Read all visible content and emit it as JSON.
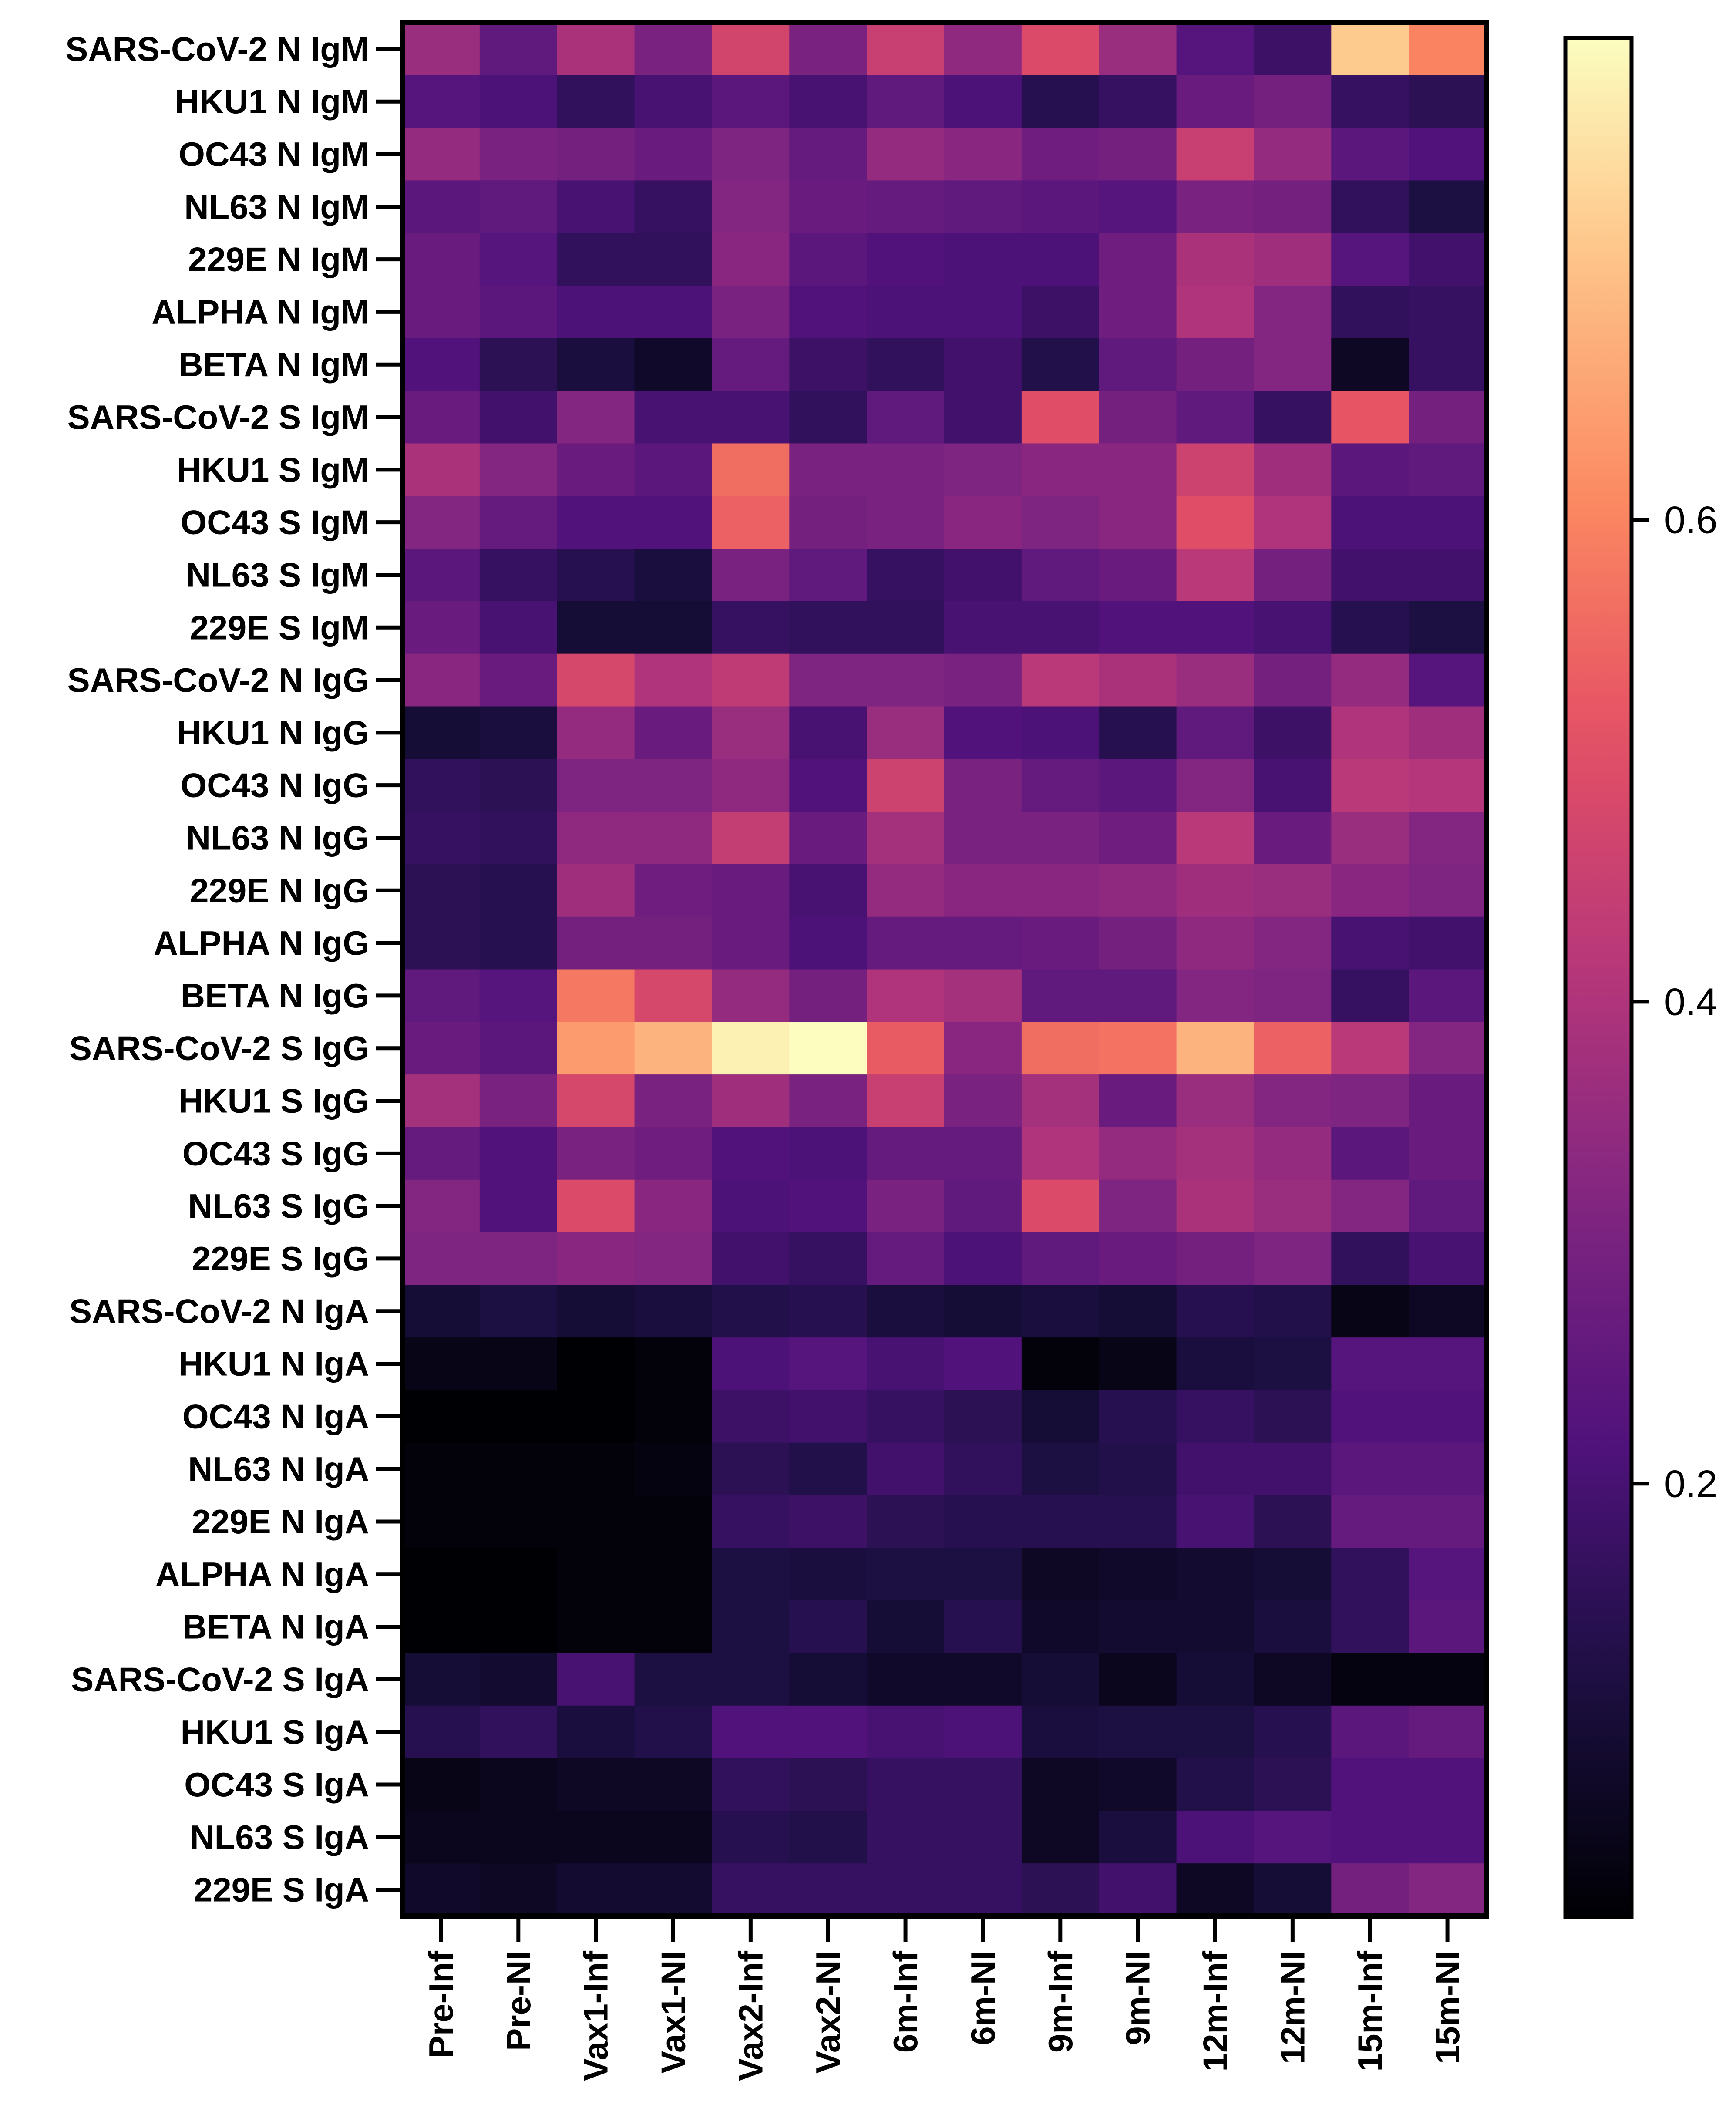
{
  "chart_data": {
    "type": "heatmap",
    "title": "",
    "colormap": "magma",
    "rows": [
      "SARS-CoV-2 N IgM",
      "HKU1 N IgM",
      "OC43 N IgM",
      "NL63 N IgM",
      "229E N IgM",
      "ALPHA N IgM",
      "BETA N IgM",
      "SARS-CoV-2 S IgM",
      "HKU1 S IgM",
      "OC43 S IgM",
      "NL63 S IgM",
      "229E S IgM",
      "SARS-CoV-2 N IgG",
      "HKU1 N IgG",
      "OC43 N IgG",
      "NL63 N IgG",
      "229E N IgG",
      "ALPHA N IgG",
      "BETA N IgG",
      "SARS-CoV-2 S IgG",
      "HKU1 S IgG",
      "OC43 S IgG",
      "NL63 S IgG",
      "229E S IgG",
      "SARS-CoV-2 N IgA",
      "HKU1 N IgA",
      "OC43 N IgA",
      "NL63 N IgA",
      "229E N IgA",
      "ALPHA N IgA",
      "BETA N IgA",
      "SARS-CoV-2 S IgA",
      "HKU1 S IgA",
      "OC43 S IgA",
      "NL63 S IgA",
      "229E S IgA"
    ],
    "columns": [
      "Pre-Inf",
      "Pre-NI",
      "Vax1-Inf",
      "Vax1-NI",
      "Vax2-Inf",
      "Vax2-NI",
      "6m-Inf",
      "6m-NI",
      "9m-Inf",
      "9m-NI",
      "12m-Inf",
      "12m-NI",
      "15m-Inf",
      "15m-NI"
    ],
    "values": [
      [
        0.36,
        0.25,
        0.39,
        0.3,
        0.47,
        0.3,
        0.45,
        0.34,
        0.49,
        0.36,
        0.23,
        0.18,
        0.72,
        0.6
      ],
      [
        0.23,
        0.21,
        0.16,
        0.2,
        0.24,
        0.2,
        0.25,
        0.21,
        0.14,
        0.17,
        0.27,
        0.29,
        0.17,
        0.15
      ],
      [
        0.35,
        0.3,
        0.29,
        0.27,
        0.31,
        0.26,
        0.35,
        0.33,
        0.28,
        0.29,
        0.45,
        0.35,
        0.24,
        0.22
      ],
      [
        0.24,
        0.25,
        0.2,
        0.17,
        0.32,
        0.27,
        0.26,
        0.25,
        0.24,
        0.23,
        0.3,
        0.29,
        0.16,
        0.12
      ],
      [
        0.27,
        0.23,
        0.16,
        0.16,
        0.33,
        0.24,
        0.22,
        0.21,
        0.21,
        0.28,
        0.39,
        0.37,
        0.23,
        0.19
      ],
      [
        0.27,
        0.24,
        0.21,
        0.21,
        0.3,
        0.22,
        0.21,
        0.21,
        0.18,
        0.28,
        0.4,
        0.32,
        0.16,
        0.17
      ],
      [
        0.22,
        0.15,
        0.11,
        0.08,
        0.26,
        0.18,
        0.16,
        0.19,
        0.13,
        0.25,
        0.29,
        0.32,
        0.07,
        0.17
      ],
      [
        0.27,
        0.19,
        0.32,
        0.2,
        0.2,
        0.16,
        0.25,
        0.19,
        0.5,
        0.29,
        0.25,
        0.17,
        0.52,
        0.29
      ],
      [
        0.39,
        0.32,
        0.27,
        0.24,
        0.56,
        0.3,
        0.3,
        0.31,
        0.33,
        0.33,
        0.46,
        0.37,
        0.24,
        0.25
      ],
      [
        0.32,
        0.26,
        0.22,
        0.22,
        0.54,
        0.29,
        0.3,
        0.33,
        0.31,
        0.33,
        0.5,
        0.4,
        0.21,
        0.21
      ],
      [
        0.24,
        0.17,
        0.14,
        0.11,
        0.3,
        0.25,
        0.17,
        0.19,
        0.25,
        0.27,
        0.42,
        0.29,
        0.19,
        0.19
      ],
      [
        0.27,
        0.2,
        0.1,
        0.1,
        0.17,
        0.16,
        0.16,
        0.2,
        0.2,
        0.22,
        0.22,
        0.2,
        0.14,
        0.12
      ],
      [
        0.33,
        0.27,
        0.48,
        0.4,
        0.43,
        0.31,
        0.31,
        0.3,
        0.42,
        0.39,
        0.36,
        0.29,
        0.35,
        0.23
      ],
      [
        0.1,
        0.11,
        0.35,
        0.27,
        0.36,
        0.2,
        0.36,
        0.22,
        0.21,
        0.14,
        0.25,
        0.18,
        0.4,
        0.37
      ],
      [
        0.16,
        0.15,
        0.31,
        0.31,
        0.34,
        0.22,
        0.46,
        0.3,
        0.26,
        0.24,
        0.32,
        0.2,
        0.42,
        0.41
      ],
      [
        0.17,
        0.16,
        0.34,
        0.34,
        0.44,
        0.27,
        0.38,
        0.3,
        0.3,
        0.28,
        0.42,
        0.27,
        0.36,
        0.32
      ],
      [
        0.15,
        0.14,
        0.37,
        0.28,
        0.27,
        0.2,
        0.35,
        0.33,
        0.33,
        0.34,
        0.37,
        0.36,
        0.33,
        0.31
      ],
      [
        0.15,
        0.14,
        0.29,
        0.29,
        0.27,
        0.21,
        0.26,
        0.26,
        0.27,
        0.29,
        0.34,
        0.32,
        0.2,
        0.19
      ],
      [
        0.25,
        0.23,
        0.58,
        0.48,
        0.35,
        0.29,
        0.4,
        0.38,
        0.25,
        0.25,
        0.32,
        0.31,
        0.17,
        0.24
      ],
      [
        0.27,
        0.24,
        0.64,
        0.68,
        0.78,
        0.8,
        0.53,
        0.33,
        0.56,
        0.57,
        0.68,
        0.54,
        0.42,
        0.32
      ],
      [
        0.38,
        0.3,
        0.48,
        0.3,
        0.37,
        0.3,
        0.45,
        0.3,
        0.38,
        0.27,
        0.36,
        0.32,
        0.31,
        0.27
      ],
      [
        0.26,
        0.22,
        0.3,
        0.28,
        0.22,
        0.21,
        0.26,
        0.26,
        0.4,
        0.35,
        0.38,
        0.35,
        0.24,
        0.27
      ],
      [
        0.32,
        0.22,
        0.49,
        0.33,
        0.21,
        0.22,
        0.3,
        0.25,
        0.49,
        0.31,
        0.39,
        0.36,
        0.32,
        0.25
      ],
      [
        0.31,
        0.31,
        0.33,
        0.32,
        0.19,
        0.17,
        0.26,
        0.21,
        0.25,
        0.27,
        0.29,
        0.31,
        0.16,
        0.2
      ],
      [
        0.1,
        0.12,
        0.1,
        0.11,
        0.13,
        0.14,
        0.11,
        0.1,
        0.11,
        0.1,
        0.14,
        0.13,
        0.05,
        0.07
      ],
      [
        0.05,
        0.05,
        0.02,
        0.03,
        0.21,
        0.23,
        0.2,
        0.22,
        0.03,
        0.05,
        0.11,
        0.12,
        0.23,
        0.23
      ],
      [
        0.02,
        0.02,
        0.02,
        0.03,
        0.18,
        0.19,
        0.17,
        0.15,
        0.1,
        0.14,
        0.17,
        0.15,
        0.22,
        0.22
      ],
      [
        0.03,
        0.03,
        0.03,
        0.04,
        0.15,
        0.13,
        0.19,
        0.16,
        0.12,
        0.13,
        0.19,
        0.19,
        0.24,
        0.24
      ],
      [
        0.03,
        0.03,
        0.03,
        0.03,
        0.17,
        0.18,
        0.15,
        0.14,
        0.14,
        0.14,
        0.2,
        0.15,
        0.26,
        0.26
      ],
      [
        0.02,
        0.02,
        0.03,
        0.03,
        0.12,
        0.11,
        0.12,
        0.12,
        0.07,
        0.08,
        0.09,
        0.1,
        0.16,
        0.23
      ],
      [
        0.02,
        0.02,
        0.03,
        0.03,
        0.12,
        0.14,
        0.1,
        0.14,
        0.08,
        0.09,
        0.09,
        0.11,
        0.16,
        0.24
      ],
      [
        0.1,
        0.09,
        0.2,
        0.12,
        0.12,
        0.1,
        0.08,
        0.08,
        0.1,
        0.06,
        0.1,
        0.07,
        0.04,
        0.04
      ],
      [
        0.14,
        0.16,
        0.11,
        0.13,
        0.22,
        0.22,
        0.2,
        0.21,
        0.11,
        0.12,
        0.12,
        0.14,
        0.24,
        0.26
      ],
      [
        0.05,
        0.06,
        0.07,
        0.07,
        0.16,
        0.15,
        0.17,
        0.17,
        0.07,
        0.08,
        0.13,
        0.15,
        0.22,
        0.22
      ],
      [
        0.06,
        0.06,
        0.06,
        0.06,
        0.14,
        0.13,
        0.17,
        0.17,
        0.07,
        0.11,
        0.21,
        0.23,
        0.22,
        0.22
      ],
      [
        0.08,
        0.07,
        0.09,
        0.09,
        0.17,
        0.17,
        0.17,
        0.17,
        0.15,
        0.19,
        0.07,
        0.1,
        0.29,
        0.32
      ]
    ],
    "colorbar": {
      "range": [
        0.02,
        0.8
      ],
      "ticks": [
        0.2,
        0.4,
        0.6
      ],
      "tick_labels": [
        "0.2",
        "0.4",
        "0.6"
      ]
    }
  }
}
